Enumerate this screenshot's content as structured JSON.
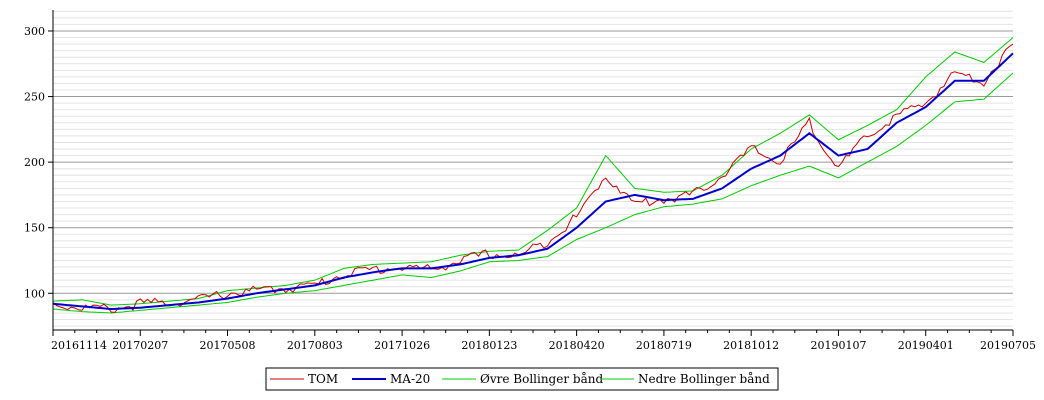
{
  "chart_data": {
    "type": "line",
    "title": "",
    "xlabel": "",
    "ylabel": "",
    "ylim": [
      72,
      316
    ],
    "yticks": [
      100,
      150,
      200,
      250,
      300
    ],
    "grid": true,
    "legend_placement": "bottom-center",
    "x_tick_labels": [
      "20161114",
      "20170207",
      "20170508",
      "20170803",
      "20171026",
      "20180123",
      "20180420",
      "20180719",
      "20181012",
      "20190107",
      "20190401",
      "20190705"
    ],
    "x": [
      "20161114",
      "20161215",
      "20170115",
      "20170207",
      "20170310",
      "20170410",
      "20170508",
      "20170610",
      "20170710",
      "20170803",
      "20170905",
      "20171005",
      "20171026",
      "20171125",
      "20171225",
      "20180123",
      "20180220",
      "20180320",
      "20180420",
      "20180515",
      "20180610",
      "20180719",
      "20180815",
      "20180915",
      "20181012",
      "20181110",
      "20181205",
      "20190107",
      "20190205",
      "20190305",
      "20190401",
      "20190501",
      "20190601",
      "20190705"
    ],
    "series": [
      {
        "name": "TOM",
        "color": "#cc0000",
        "values": [
          92,
          89,
          88,
          92,
          93,
          95,
          100,
          102,
          104,
          106,
          115,
          118,
          120,
          118,
          125,
          130,
          128,
          140,
          158,
          190,
          168,
          172,
          175,
          190,
          210,
          200,
          230,
          195,
          220,
          235,
          245,
          268,
          262,
          290
        ]
      },
      {
        "name": "MA-20",
        "color": "#0000cc",
        "values": [
          92,
          90,
          88,
          89,
          91,
          93,
          96,
          100,
          103,
          106,
          112,
          116,
          119,
          119,
          122,
          127,
          129,
          134,
          150,
          170,
          175,
          171,
          172,
          180,
          195,
          205,
          222,
          205,
          210,
          230,
          242,
          262,
          262,
          283
        ]
      },
      {
        "name": "Øvre Bollinger bånd",
        "color": "#00cc00",
        "values": [
          94,
          95,
          91,
          92,
          94,
          96,
          102,
          104,
          106,
          110,
          119,
          122,
          123,
          124,
          129,
          132,
          133,
          148,
          165,
          205,
          180,
          177,
          178,
          190,
          210,
          222,
          236,
          217,
          228,
          240,
          265,
          284,
          276,
          295
        ]
      },
      {
        "name": "Nedre Bollinger bånd",
        "color": "#00cc00",
        "values": [
          88,
          86,
          85,
          87,
          89,
          91,
          93,
          97,
          100,
          102,
          106,
          110,
          114,
          112,
          117,
          124,
          125,
          128,
          141,
          150,
          160,
          166,
          168,
          172,
          182,
          190,
          197,
          188,
          200,
          212,
          228,
          246,
          248,
          268
        ]
      }
    ]
  }
}
